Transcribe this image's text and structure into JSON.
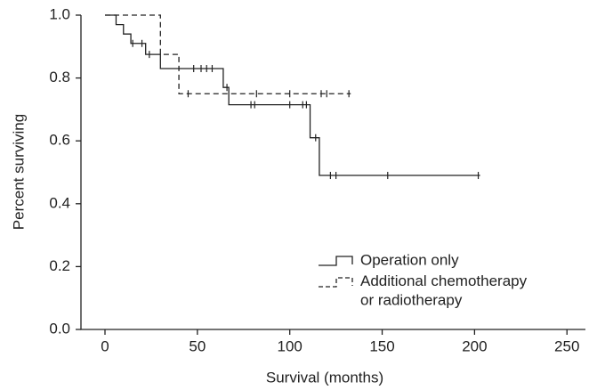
{
  "chart_data": {
    "type": "km",
    "xlabel": "Survival (months)",
    "ylabel": "Percent surviving",
    "xlim": [
      -13,
      260
    ],
    "ylim": [
      0,
      1.0
    ],
    "xticks": [
      0,
      50,
      100,
      150,
      200,
      250
    ],
    "yticks": [
      {
        "value": 0,
        "label": "0.0"
      },
      0.2,
      0.4,
      0.6,
      0.8,
      {
        "value": 1,
        "label": "1.0"
      }
    ],
    "series": [
      {
        "name": "Operation only",
        "color": "#222222",
        "dash": false,
        "x": [
          0,
          6,
          10,
          14,
          22,
          30,
          64,
          67,
          111,
          116,
          203
        ],
        "values": [
          1.0,
          0.97,
          0.94,
          0.91,
          0.875,
          0.83,
          0.77,
          0.715,
          0.61,
          0.49,
          0.49
        ],
        "censor_x": [
          15,
          20,
          24,
          48,
          52,
          55,
          58,
          66,
          79,
          81,
          100,
          107,
          109,
          114,
          122,
          125,
          153,
          202
        ],
        "censor_values": [
          0.91,
          0.91,
          0.875,
          0.83,
          0.83,
          0.83,
          0.83,
          0.77,
          0.715,
          0.715,
          0.715,
          0.715,
          0.715,
          0.61,
          0.49,
          0.49,
          0.49,
          0.49
        ]
      },
      {
        "name": "Additional chemotherapy\nor radiotherapy",
        "color": "#222222",
        "dash": true,
        "x": [
          0,
          30,
          40,
          133
        ],
        "values": [
          1.0,
          0.875,
          0.75,
          0.75
        ],
        "censor_x": [
          45,
          82,
          100,
          117,
          120,
          132
        ],
        "censor_values": [
          0.75,
          0.75,
          0.75,
          0.75,
          0.75,
          0.75
        ]
      }
    ]
  }
}
